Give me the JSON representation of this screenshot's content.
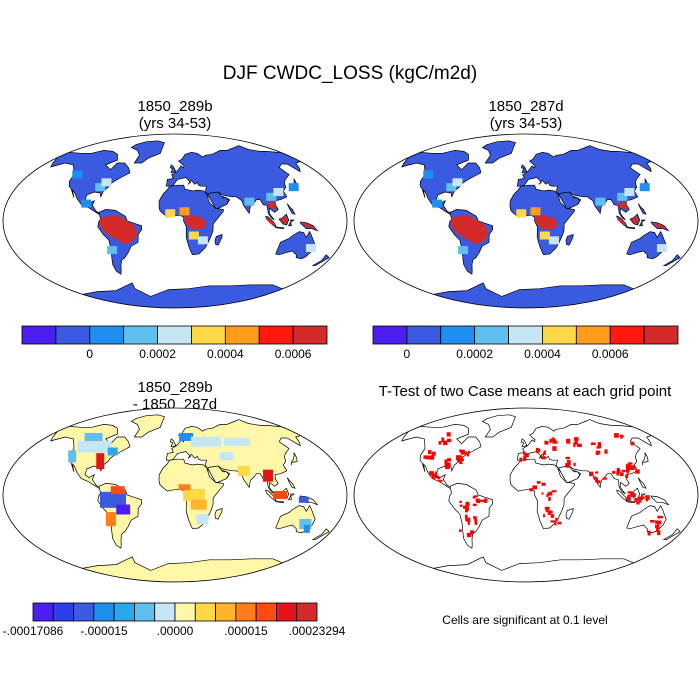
{
  "title": "DJF CWDC_LOSS (kgC/m2d)",
  "panels": {
    "top_left": {
      "title": "1850_289b\n(yrs 34-53)"
    },
    "top_right": {
      "title": "1850_287d\n(yrs 34-53)"
    },
    "bottom_left": {
      "title": "1850_289b\n- 1850_287d"
    },
    "bottom_right": {
      "title": "T-Test of two Case means at each grid point",
      "note": "Cells are significant at 0.1 level"
    }
  },
  "colorbars": {
    "case": {
      "colors": [
        "#4b1ff0",
        "#3a5be0",
        "#1e8ff0",
        "#5fc0ef",
        "#c5e6f5",
        "#ffd845",
        "#ff9c1a",
        "#fe1a0f",
        "#d42a2a"
      ],
      "labels": [
        "0",
        "0.0002",
        "0.0004",
        "0.0006"
      ]
    },
    "diff": {
      "colors": [
        "#4b1ff0",
        "#2f3fe8",
        "#3a5be0",
        "#1e8ff0",
        "#2aa8ec",
        "#5fc0ef",
        "#c5e6f5",
        "#fff7a8",
        "#ffd845",
        "#ffb52a",
        "#ff7d1a",
        "#ff4a12",
        "#e4141a",
        "#d42a2a"
      ],
      "labels": [
        "-.00017086",
        "-.000015",
        ".00000",
        ".000015",
        ".00023294"
      ]
    }
  },
  "chart_data": [
    {
      "type": "heatmap",
      "title": "1850_289b\n(yrs 34-53)",
      "map": "Robinson world map",
      "units": "kgC/m2d",
      "colorbar_ticks": [
        0,
        0.0002,
        0.0004,
        0.0006
      ],
      "background_class": "bin 2 (blue)",
      "high_regions": [
        "Amazon basin",
        "Congo basin",
        "Indonesia / Southeast Asia"
      ]
    },
    {
      "type": "heatmap",
      "title": "1850_287d\n(yrs 34-53)",
      "map": "Robinson world map",
      "units": "kgC/m2d",
      "colorbar_ticks": [
        0,
        0.0002,
        0.0004,
        0.0006
      ],
      "background_class": "bin 2 (blue)",
      "high_regions": [
        "Amazon basin",
        "Congo basin",
        "Indonesia / Southeast Asia"
      ]
    },
    {
      "type": "heatmap",
      "title": "1850_289b\n- 1850_287d",
      "map": "Robinson world map",
      "colorbar_ticks": [
        "-.00017086",
        "-.000015",
        ".00000",
        ".000015",
        ".00023294"
      ],
      "background_class": "near zero (pale yellow)"
    },
    {
      "type": "heatmap",
      "title": "T-Test of two Case means at each grid point",
      "map": "Robinson world map",
      "note": "Cells are significant at 0.1 level",
      "significant_color": "#ff0000"
    }
  ]
}
